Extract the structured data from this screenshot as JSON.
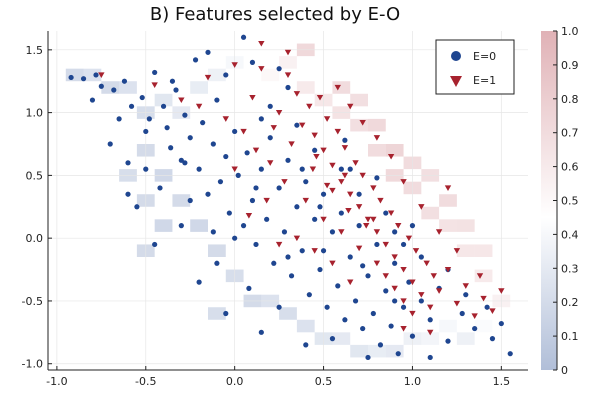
{
  "chart_data": {
    "type": "scatter",
    "title": "B) Features selected by E-O",
    "xlabel": "",
    "ylabel": "",
    "xlim": [
      -1.05,
      1.65
    ],
    "ylim": [
      -1.05,
      1.65
    ],
    "x_ticks": [
      -1.0,
      -0.5,
      0.0,
      0.5,
      1.0,
      1.5
    ],
    "x_tick_labels": [
      "-1.0",
      "-0.5",
      "0.0",
      "0.5",
      "1.0",
      "1.5"
    ],
    "y_ticks": [
      -1.0,
      -0.5,
      0.0,
      0.5,
      1.0,
      1.5
    ],
    "y_tick_labels": [
      "-1.0",
      "-0.5",
      "0.0",
      "0.5",
      "1.0",
      "1.5"
    ],
    "grid": true,
    "legend_position": "top-right",
    "series": [
      {
        "name": "E=0",
        "marker": "circle",
        "color": "#1f4690",
        "points": [
          [
            -0.92,
            1.28
          ],
          [
            -0.85,
            1.27
          ],
          [
            -0.78,
            1.3
          ],
          [
            -0.75,
            1.21
          ],
          [
            -0.68,
            1.18
          ],
          [
            -0.62,
            1.25
          ],
          [
            -0.58,
            1.05
          ],
          [
            -0.52,
            1.12
          ],
          [
            -0.48,
            0.95
          ],
          [
            -0.45,
            1.32
          ],
          [
            -0.4,
            1.05
          ],
          [
            -0.38,
            0.88
          ],
          [
            -0.36,
            0.72
          ],
          [
            -0.33,
            1.18
          ],
          [
            -0.3,
            0.62
          ],
          [
            -0.28,
            0.98
          ],
          [
            -0.25,
            0.8
          ],
          [
            -0.22,
            1.42
          ],
          [
            -0.2,
            0.55
          ],
          [
            -0.18,
            0.92
          ],
          [
            -0.15,
            0.35
          ],
          [
            -0.12,
            0.75
          ],
          [
            -0.1,
            1.1
          ],
          [
            -0.08,
            0.45
          ],
          [
            -0.05,
            0.65
          ],
          [
            -0.03,
            0.2
          ],
          [
            0.0,
            0.85
          ],
          [
            0.02,
            0.5
          ],
          [
            0.05,
            0.1
          ],
          [
            0.07,
            0.68
          ],
          [
            0.1,
            0.3
          ],
          [
            0.12,
            -0.05
          ],
          [
            0.15,
            0.55
          ],
          [
            0.18,
            0.15
          ],
          [
            0.2,
            0.8
          ],
          [
            0.22,
            -0.2
          ],
          [
            0.25,
            0.4
          ],
          [
            0.28,
            0.05
          ],
          [
            0.3,
            0.62
          ],
          [
            0.32,
            -0.3
          ],
          [
            0.35,
            0.25
          ],
          [
            0.38,
            -0.1
          ],
          [
            0.4,
            0.45
          ],
          [
            0.42,
            -0.45
          ],
          [
            0.45,
            0.15
          ],
          [
            0.48,
            -0.25
          ],
          [
            0.5,
            0.35
          ],
          [
            0.52,
            -0.55
          ],
          [
            0.55,
            0.05
          ],
          [
            0.58,
            -0.38
          ],
          [
            0.6,
            0.2
          ],
          [
            0.62,
            -0.65
          ],
          [
            0.65,
            -0.15
          ],
          [
            0.68,
            -0.5
          ],
          [
            0.7,
            0.1
          ],
          [
            0.72,
            -0.72
          ],
          [
            0.75,
            -0.3
          ],
          [
            0.78,
            -0.6
          ],
          [
            0.8,
            -0.05
          ],
          [
            0.82,
            -0.85
          ],
          [
            0.85,
            -0.42
          ],
          [
            0.88,
            -0.7
          ],
          [
            0.9,
            -0.2
          ],
          [
            0.92,
            -0.92
          ],
          [
            0.95,
            -0.55
          ],
          [
            0.98,
            -0.35
          ],
          [
            1.0,
            -0.78
          ],
          [
            1.05,
            -0.5
          ],
          [
            1.1,
            -0.65
          ],
          [
            1.15,
            -0.4
          ],
          [
            1.2,
            -0.82
          ],
          [
            1.28,
            -0.6
          ],
          [
            1.35,
            -0.72
          ],
          [
            1.42,
            -0.55
          ],
          [
            1.5,
            -0.68
          ],
          [
            1.55,
            -0.92
          ],
          [
            -0.45,
            -0.05
          ],
          [
            -0.6,
            0.35
          ],
          [
            -0.05,
            -0.6
          ],
          [
            -0.3,
            0.1
          ],
          [
            0.05,
            1.6
          ],
          [
            -0.15,
            1.48
          ],
          [
            -0.55,
            0.25
          ],
          [
            0.15,
            -0.75
          ],
          [
            0.4,
            -0.85
          ],
          [
            0.3,
            1.2
          ],
          [
            0.1,
            1.4
          ],
          [
            0.2,
            1.05
          ],
          [
            -0.25,
            0.3
          ],
          [
            0.6,
            0.55
          ],
          [
            0.35,
            0.9
          ],
          [
            0.45,
            0.7
          ],
          [
            0.0,
            0.0
          ],
          [
            -0.1,
            -0.2
          ],
          [
            0.25,
            -0.55
          ],
          [
            0.55,
            -0.8
          ],
          [
            0.75,
            -0.95
          ],
          [
            1.1,
            -0.95
          ],
          [
            0.9,
            0.05
          ],
          [
            1.2,
            -0.25
          ],
          [
            0.7,
            0.35
          ],
          [
            -0.7,
            0.75
          ],
          [
            -0.5,
            0.55
          ],
          [
            -0.42,
            0.4
          ],
          [
            -0.2,
            -0.35
          ],
          [
            0.08,
            -0.4
          ],
          [
            0.5,
            -0.1
          ],
          [
            0.65,
            0.55
          ],
          [
            0.85,
            0.2
          ],
          [
            1.05,
            -0.15
          ],
          [
            1.3,
            -0.45
          ],
          [
            1.45,
            -0.8
          ],
          [
            -0.65,
            0.95
          ],
          [
            -0.8,
            1.1
          ],
          [
            -0.35,
            1.25
          ],
          [
            -0.05,
            1.3
          ],
          [
            0.25,
            1.35
          ],
          [
            0.15,
            0.95
          ],
          [
            -0.12,
            0.05
          ],
          [
            0.38,
            0.55
          ],
          [
            0.62,
            0.78
          ],
          [
            0.8,
            0.48
          ],
          [
            1.0,
            0.1
          ],
          [
            0.95,
            -0.05
          ],
          [
            0.3,
            -0.15
          ],
          [
            0.12,
            0.4
          ],
          [
            -0.28,
            0.6
          ],
          [
            -0.6,
            0.6
          ],
          [
            -0.5,
            0.85
          ],
          [
            0.48,
            0.25
          ],
          [
            0.72,
            -0.22
          ],
          [
            0.9,
            -0.5
          ]
        ]
      },
      {
        "name": "E=1",
        "marker": "triangle-down",
        "color": "#a7222e",
        "points": [
          [
            -0.75,
            1.3
          ],
          [
            -0.45,
            1.22
          ],
          [
            -0.3,
            1.1
          ],
          [
            -0.15,
            1.28
          ],
          [
            0.0,
            1.38
          ],
          [
            0.1,
            1.12
          ],
          [
            0.15,
            1.35
          ],
          [
            0.25,
            1.0
          ],
          [
            0.3,
            1.3
          ],
          [
            0.35,
            1.15
          ],
          [
            0.38,
            0.9
          ],
          [
            0.42,
            1.05
          ],
          [
            0.45,
            0.82
          ],
          [
            0.48,
            1.12
          ],
          [
            0.5,
            0.7
          ],
          [
            0.52,
            0.95
          ],
          [
            0.55,
            0.58
          ],
          [
            0.58,
            0.85
          ],
          [
            0.6,
            0.45
          ],
          [
            0.62,
            0.72
          ],
          [
            0.65,
            0.35
          ],
          [
            0.68,
            0.6
          ],
          [
            0.7,
            0.25
          ],
          [
            0.72,
            0.5
          ],
          [
            0.75,
            0.15
          ],
          [
            0.78,
            0.4
          ],
          [
            0.8,
            0.05
          ],
          [
            0.82,
            0.3
          ],
          [
            0.85,
            -0.05
          ],
          [
            0.88,
            0.2
          ],
          [
            0.9,
            -0.15
          ],
          [
            0.92,
            0.1
          ],
          [
            0.95,
            -0.25
          ],
          [
            0.98,
            0.0
          ],
          [
            1.0,
            -0.35
          ],
          [
            1.02,
            -0.1
          ],
          [
            1.05,
            -0.45
          ],
          [
            1.08,
            -0.2
          ],
          [
            1.1,
            -0.55
          ],
          [
            1.12,
            -0.3
          ],
          [
            1.15,
            -0.42
          ],
          [
            1.2,
            -0.25
          ],
          [
            1.25,
            -0.52
          ],
          [
            1.3,
            -0.38
          ],
          [
            1.35,
            -0.62
          ],
          [
            1.4,
            -0.48
          ],
          [
            1.45,
            -0.58
          ],
          [
            1.5,
            -0.42
          ],
          [
            0.2,
            0.6
          ],
          [
            0.28,
            0.45
          ],
          [
            0.32,
            0.75
          ],
          [
            0.4,
            0.3
          ],
          [
            0.44,
            0.55
          ],
          [
            0.5,
            0.15
          ],
          [
            0.55,
            0.38
          ],
          [
            0.6,
            0.05
          ],
          [
            0.64,
            0.22
          ],
          [
            0.7,
            -0.08
          ],
          [
            0.74,
            0.1
          ],
          [
            0.8,
            -0.2
          ],
          [
            0.85,
            -0.3
          ],
          [
            0.9,
            -0.4
          ],
          [
            0.95,
            -0.5
          ],
          [
            1.0,
            -0.6
          ],
          [
            0.05,
            0.85
          ],
          [
            0.12,
            0.7
          ],
          [
            -0.05,
            0.95
          ],
          [
            -0.2,
            1.05
          ],
          [
            0.0,
            0.55
          ],
          [
            0.18,
            0.3
          ],
          [
            0.35,
            0.0
          ],
          [
            0.45,
            -0.1
          ],
          [
            0.55,
            -0.2
          ],
          [
            0.65,
            -0.35
          ],
          [
            0.58,
            1.2
          ],
          [
            0.65,
            1.05
          ],
          [
            0.72,
            0.92
          ],
          [
            0.8,
            0.8
          ],
          [
            0.88,
            0.65
          ],
          [
            0.95,
            0.45
          ],
          [
            1.05,
            0.25
          ],
          [
            1.15,
            0.05
          ],
          [
            1.25,
            -0.1
          ],
          [
            1.2,
            0.4
          ],
          [
            0.3,
            1.48
          ],
          [
            0.15,
            1.55
          ],
          [
            0.22,
            0.88
          ],
          [
            0.46,
            0.65
          ],
          [
            0.62,
            0.5
          ],
          [
            0.78,
            0.15
          ],
          [
            1.1,
            -0.75
          ],
          [
            0.95,
            -0.72
          ],
          [
            1.38,
            -0.3
          ],
          [
            0.08,
            0.18
          ],
          [
            0.25,
            -0.05
          ],
          [
            0.52,
            0.42
          ]
        ]
      }
    ],
    "heatmap": {
      "colorbar_min": 0,
      "colorbar_max": 1,
      "colorbar_ticks": [
        0,
        0.1,
        0.2,
        0.3,
        0.4,
        0.5,
        0.6,
        0.7,
        0.8,
        0.9,
        1.0
      ],
      "colorbar_tick_labels": [
        "0",
        "0.1",
        "0.2",
        "0.3",
        "0.4",
        "0.5",
        "0.6",
        "0.7",
        "0.8",
        "0.9",
        "1.0"
      ],
      "colormap": [
        "#1f4690",
        "#ffffff",
        "#a7222e"
      ],
      "cells": [
        [
          -0.9,
          1.3,
          0.2
        ],
        [
          -0.8,
          1.3,
          0.25
        ],
        [
          -0.7,
          1.2,
          0.2
        ],
        [
          -0.6,
          1.2,
          0.25
        ],
        [
          -0.5,
          1.0,
          0.22
        ],
        [
          -0.4,
          1.1,
          0.28
        ],
        [
          -0.3,
          1.0,
          0.3
        ],
        [
          -0.2,
          1.2,
          0.32
        ],
        [
          -0.1,
          1.3,
          0.35
        ],
        [
          0.0,
          1.4,
          0.4
        ],
        [
          0.1,
          1.4,
          0.45
        ],
        [
          0.2,
          1.3,
          0.5
        ],
        [
          0.3,
          1.4,
          0.55
        ],
        [
          0.4,
          1.2,
          0.6
        ],
        [
          0.5,
          1.1,
          0.62
        ],
        [
          0.6,
          1.0,
          0.65
        ],
        [
          0.7,
          0.9,
          0.68
        ],
        [
          0.8,
          0.7,
          0.7
        ],
        [
          0.9,
          0.5,
          0.72
        ],
        [
          1.0,
          0.4,
          0.7
        ],
        [
          1.1,
          0.2,
          0.68
        ],
        [
          1.2,
          0.1,
          0.65
        ],
        [
          1.3,
          -0.1,
          0.62
        ],
        [
          1.4,
          -0.3,
          0.6
        ],
        [
          1.5,
          -0.5,
          0.55
        ],
        [
          -0.5,
          0.7,
          0.2
        ],
        [
          -0.4,
          0.5,
          0.18
        ],
        [
          -0.3,
          0.3,
          0.2
        ],
        [
          -0.2,
          0.1,
          0.18
        ],
        [
          -0.1,
          -0.1,
          0.2
        ],
        [
          0.0,
          -0.3,
          0.22
        ],
        [
          0.1,
          -0.5,
          0.2
        ],
        [
          0.2,
          -0.5,
          0.25
        ],
        [
          0.3,
          -0.6,
          0.22
        ],
        [
          0.4,
          -0.7,
          0.25
        ],
        [
          0.5,
          -0.8,
          0.28
        ],
        [
          0.6,
          -0.8,
          0.3
        ],
        [
          0.7,
          -0.9,
          0.28
        ],
        [
          0.8,
          -0.9,
          0.32
        ],
        [
          0.9,
          -0.9,
          0.3
        ],
        [
          1.0,
          -0.8,
          0.35
        ],
        [
          1.1,
          -0.8,
          0.38
        ],
        [
          1.2,
          -0.7,
          0.4
        ],
        [
          1.3,
          -0.8,
          0.35
        ],
        [
          1.4,
          -0.7,
          0.42
        ],
        [
          -0.6,
          0.5,
          0.22
        ],
        [
          -0.5,
          0.3,
          0.2
        ],
        [
          -0.4,
          0.1,
          0.18
        ],
        [
          -0.5,
          -0.1,
          0.2
        ],
        [
          -0.1,
          -0.6,
          0.22
        ],
        [
          0.6,
          1.2,
          0.7
        ],
        [
          0.4,
          1.5,
          0.72
        ],
        [
          0.7,
          1.1,
          0.68
        ],
        [
          0.8,
          0.9,
          0.72
        ],
        [
          0.9,
          0.7,
          0.75
        ],
        [
          1.0,
          0.6,
          0.7
        ],
        [
          1.1,
          0.5,
          0.68
        ],
        [
          1.2,
          0.3,
          0.7
        ],
        [
          1.3,
          0.1,
          0.66
        ],
        [
          1.4,
          -0.1,
          0.62
        ]
      ]
    }
  },
  "legend": {
    "items": [
      {
        "label": "E=0",
        "color": "#1f4690",
        "marker": "circle"
      },
      {
        "label": "E=1",
        "color": "#a7222e",
        "marker": "triangle-down"
      }
    ]
  }
}
